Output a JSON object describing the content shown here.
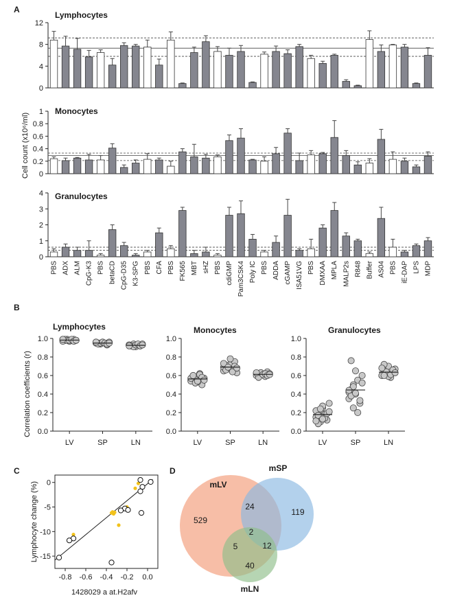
{
  "figure": {
    "panel_letters": [
      "A",
      "B",
      "C",
      "D"
    ]
  },
  "chart_data": [
    {
      "panel": "A",
      "type": "bar",
      "title": "Lymphocytes",
      "ylabel": "Cell count (x10⁶/ml)",
      "ylim": [
        0,
        12
      ],
      "yticks": [
        0,
        4,
        8,
        12
      ],
      "categories": [
        "PBS",
        "ADX",
        "ALM",
        "CpG-K3",
        "PBS",
        "betaCD",
        "CpG-D35",
        "K3-SPG",
        "PBS",
        "CFA",
        "PBS",
        "FK565",
        "MBT",
        "sHZ",
        "PBS",
        "cdiGMP",
        "Pam3CSK4",
        "Poly IC",
        "PBS",
        "ADDA",
        "cGAMP",
        "ISA51VG",
        "PBS",
        "DMXAA",
        "MPLA",
        "MALP2s",
        "R848",
        "Buffer",
        "AS04",
        "PBS",
        "iE-DAP",
        "LPS",
        "MDP"
      ],
      "fill": [
        "white",
        "gray",
        "gray",
        "gray",
        "white",
        "gray",
        "gray",
        "gray",
        "white",
        "gray",
        "white",
        "gray",
        "gray",
        "gray",
        "white",
        "gray",
        "gray",
        "gray",
        "white",
        "gray",
        "gray",
        "gray",
        "white",
        "gray",
        "gray",
        "gray",
        "gray",
        "white",
        "gray",
        "white",
        "gray",
        "gray",
        "gray"
      ],
      "values": [
        8.8,
        7.7,
        7.1,
        5.7,
        6.5,
        4.2,
        7.8,
        7.7,
        7.5,
        4.2,
        8.8,
        0.8,
        6.5,
        8.5,
        6.7,
        6.0,
        6.7,
        1.0,
        6.2,
        6.7,
        6.3,
        7.6,
        5.4,
        4.5,
        6.0,
        1.2,
        0.4,
        8.9,
        6.7,
        7.9,
        7.5,
        0.8,
        6.0
      ],
      "errors": [
        1.6,
        1.8,
        2.0,
        1.2,
        0.5,
        1.2,
        0.5,
        0.3,
        1.3,
        1.1,
        1.5,
        0.1,
        1.0,
        1.1,
        0.9,
        1.3,
        1.1,
        0.1,
        0.4,
        1.0,
        0.7,
        0.4,
        0.6,
        0.4,
        0.2,
        0.3,
        0.1,
        1.6,
        1.2,
        0.1,
        0.5,
        0.1,
        1.4
      ],
      "reference_lines": [
        5.8,
        7.3,
        9.2
      ]
    },
    {
      "panel": "A",
      "type": "bar",
      "title": "Monocytes",
      "ylim": [
        0,
        1.0
      ],
      "yticks": [
        0,
        0.2,
        0.4,
        0.6,
        0.8,
        1.0
      ],
      "values": [
        0.24,
        0.21,
        0.25,
        0.22,
        0.22,
        0.41,
        0.1,
        0.17,
        0.23,
        0.22,
        0.12,
        0.35,
        0.27,
        0.25,
        0.27,
        0.53,
        0.57,
        0.22,
        0.2,
        0.32,
        0.65,
        0.21,
        0.3,
        0.32,
        0.58,
        0.29,
        0.14,
        0.17,
        0.55,
        0.23,
        0.2,
        0.11,
        0.28
      ],
      "errors": [
        0.03,
        0.04,
        0.01,
        0.09,
        0.07,
        0.07,
        0.04,
        0.05,
        0.09,
        0.03,
        0.08,
        0.05,
        0.2,
        0.06,
        0.03,
        0.09,
        0.15,
        0.01,
        0.07,
        0.1,
        0.07,
        0.12,
        0.07,
        0.02,
        0.27,
        0.08,
        0.05,
        0.07,
        0.16,
        0.12,
        0.05,
        0.03,
        0.07
      ],
      "reference_lines": [
        0.21,
        0.29,
        0.33
      ]
    },
    {
      "panel": "A",
      "type": "bar",
      "title": "Granulocytes",
      "ylim": [
        0,
        4
      ],
      "yticks": [
        0,
        1,
        2,
        3,
        4
      ],
      "values": [
        0.3,
        0.6,
        0.4,
        0.4,
        0.1,
        1.7,
        0.7,
        0.1,
        0.3,
        1.5,
        0.5,
        2.9,
        0.2,
        0.3,
        0.1,
        2.6,
        2.7,
        1.1,
        0.3,
        0.9,
        2.6,
        0.4,
        0.5,
        1.8,
        2.9,
        1.3,
        1.0,
        0.2,
        2.4,
        0.6,
        0.3,
        0.7,
        1.0
      ],
      "errors": [
        0.2,
        0.2,
        0.2,
        0.6,
        0.1,
        0.3,
        0.2,
        0.1,
        0.1,
        0.3,
        0.2,
        0.2,
        0.2,
        0.3,
        0.1,
        0.5,
        0.8,
        0.3,
        0.1,
        0.4,
        1.0,
        0.1,
        0.6,
        0.2,
        0.5,
        0.2,
        0.1,
        0.1,
        0.7,
        0.5,
        0.1,
        0.1,
        0.2
      ],
      "reference_lines": [
        0.4,
        0.6
      ]
    },
    {
      "panel": "B",
      "type": "scatter",
      "title": "Lymphocytes",
      "ylabel": "Correlation coefficients (r)",
      "ylim": [
        0,
        1.0
      ],
      "yticks": [
        0.0,
        0.2,
        0.4,
        0.6,
        0.8,
        1.0
      ],
      "categories": [
        "LV",
        "SP",
        "LN"
      ],
      "groups": [
        [
          0.99,
          0.98,
          0.99,
          0.97,
          0.98,
          0.99,
          0.98,
          0.97,
          0.99,
          0.98,
          0.98,
          0.99,
          0.97,
          0.98,
          0.99
        ],
        [
          0.96,
          0.95,
          0.94,
          0.96,
          0.95,
          0.93,
          0.96,
          0.95,
          0.94,
          0.95,
          0.96,
          0.95,
          0.94,
          0.95,
          0.96
        ],
        [
          0.93,
          0.92,
          0.94,
          0.91,
          0.93,
          0.92,
          0.94,
          0.93,
          0.92,
          0.91,
          0.93,
          0.94,
          0.92,
          0.93,
          0.92
        ]
      ]
    },
    {
      "panel": "B",
      "type": "scatter",
      "title": "Monocytes",
      "ylim": [
        0,
        1.0
      ],
      "yticks": [
        0.0,
        0.2,
        0.4,
        0.6,
        0.8,
        1.0
      ],
      "categories": [
        "LV",
        "SP",
        "LN"
      ],
      "groups": [
        [
          0.55,
          0.6,
          0.52,
          0.58,
          0.62,
          0.5,
          0.57,
          0.54,
          0.59,
          0.56,
          0.53,
          0.61,
          0.58,
          0.55,
          0.57,
          0.6,
          0.52,
          0.54
        ],
        [
          0.65,
          0.7,
          0.68,
          0.72,
          0.66,
          0.75,
          0.63,
          0.69,
          0.71,
          0.67,
          0.78,
          0.64,
          0.7,
          0.68,
          0.73,
          0.66,
          0.69
        ],
        [
          0.62,
          0.6,
          0.63,
          0.61,
          0.59,
          0.64,
          0.62,
          0.6,
          0.58,
          0.63,
          0.61,
          0.62,
          0.6,
          0.61,
          0.63
        ]
      ]
    },
    {
      "panel": "B",
      "type": "scatter",
      "title": "Granulocytes",
      "ylim": [
        0,
        1.0
      ],
      "yticks": [
        0.0,
        0.2,
        0.4,
        0.6,
        0.8,
        1.0
      ],
      "categories": [
        "LV",
        "SP",
        "LN"
      ],
      "groups": [
        [
          0.15,
          0.2,
          0.1,
          0.25,
          0.18,
          0.12,
          0.3,
          0.22,
          0.08,
          0.16,
          0.27,
          0.14,
          0.19,
          0.21,
          0.11,
          0.17,
          0.24,
          0.13
        ],
        [
          0.35,
          0.45,
          0.5,
          0.4,
          0.55,
          0.3,
          0.6,
          0.42,
          0.38,
          0.48,
          0.65,
          0.2,
          0.33,
          0.52,
          0.44,
          0.76,
          0.25,
          0.41
        ],
        [
          0.6,
          0.65,
          0.62,
          0.7,
          0.58,
          0.63,
          0.67,
          0.6,
          0.72,
          0.64,
          0.59,
          0.61,
          0.66,
          0.63,
          0.68,
          0.6
        ]
      ]
    },
    {
      "panel": "C",
      "type": "scatter",
      "xlabel": "1428029 a at.H2afv",
      "ylabel": "Lymphocyte change (%)",
      "xlim": [
        -0.9,
        0.1
      ],
      "ylim": [
        -17.5,
        1.5
      ],
      "xticks": [
        -0.8,
        -0.6,
        -0.4,
        -0.2,
        0.0
      ],
      "yticks": [
        0,
        -5,
        -10,
        -15
      ],
      "points": [
        {
          "x": 0.03,
          "y": 0.1
        },
        {
          "x": -0.07,
          "y": 0.5
        },
        {
          "x": -0.05,
          "y": -0.9
        },
        {
          "x": -0.07,
          "y": -1.8
        },
        {
          "x": -0.22,
          "y": -5.3
        },
        {
          "x": -0.19,
          "y": -5.6
        },
        {
          "x": -0.26,
          "y": -5.7
        },
        {
          "x": -0.06,
          "y": -6.2
        },
        {
          "x": -0.72,
          "y": -11.4
        },
        {
          "x": -0.76,
          "y": -11.8
        },
        {
          "x": -0.35,
          "y": -16.3
        },
        {
          "x": -0.86,
          "y": -15.3
        }
      ],
      "highlight_points": [
        {
          "x": -0.34,
          "y": -6.0
        },
        {
          "x": -0.33,
          "y": -6.4
        },
        {
          "x": -0.35,
          "y": -6.2
        },
        {
          "x": -0.32,
          "y": -6.1
        },
        {
          "x": -0.09,
          "y": -0.2
        },
        {
          "x": -0.12,
          "y": -1.2
        },
        {
          "x": -0.28,
          "y": -8.7
        },
        {
          "x": -0.72,
          "y": -10.6
        },
        {
          "x": -0.2,
          "y": -5.0
        }
      ],
      "fit_line": {
        "x1": -0.9,
        "y1": -15.8,
        "x2": 0.05,
        "y2": 0.6
      },
      "colors": {
        "highlight": "#f2c21b"
      }
    }
  ],
  "venn": {
    "sets": [
      {
        "label": "mLV",
        "color": "#e53a2c"
      },
      {
        "label": "mSP",
        "color": "#2f8ecf"
      },
      {
        "label": "mLN",
        "color": "#3c9a4d"
      }
    ],
    "counts": {
      "lv_only": "529",
      "sp_only": "119",
      "ln_only": "40",
      "lv_sp": "24",
      "lv_ln": "5",
      "sp_ln": "12",
      "all": "2"
    }
  }
}
